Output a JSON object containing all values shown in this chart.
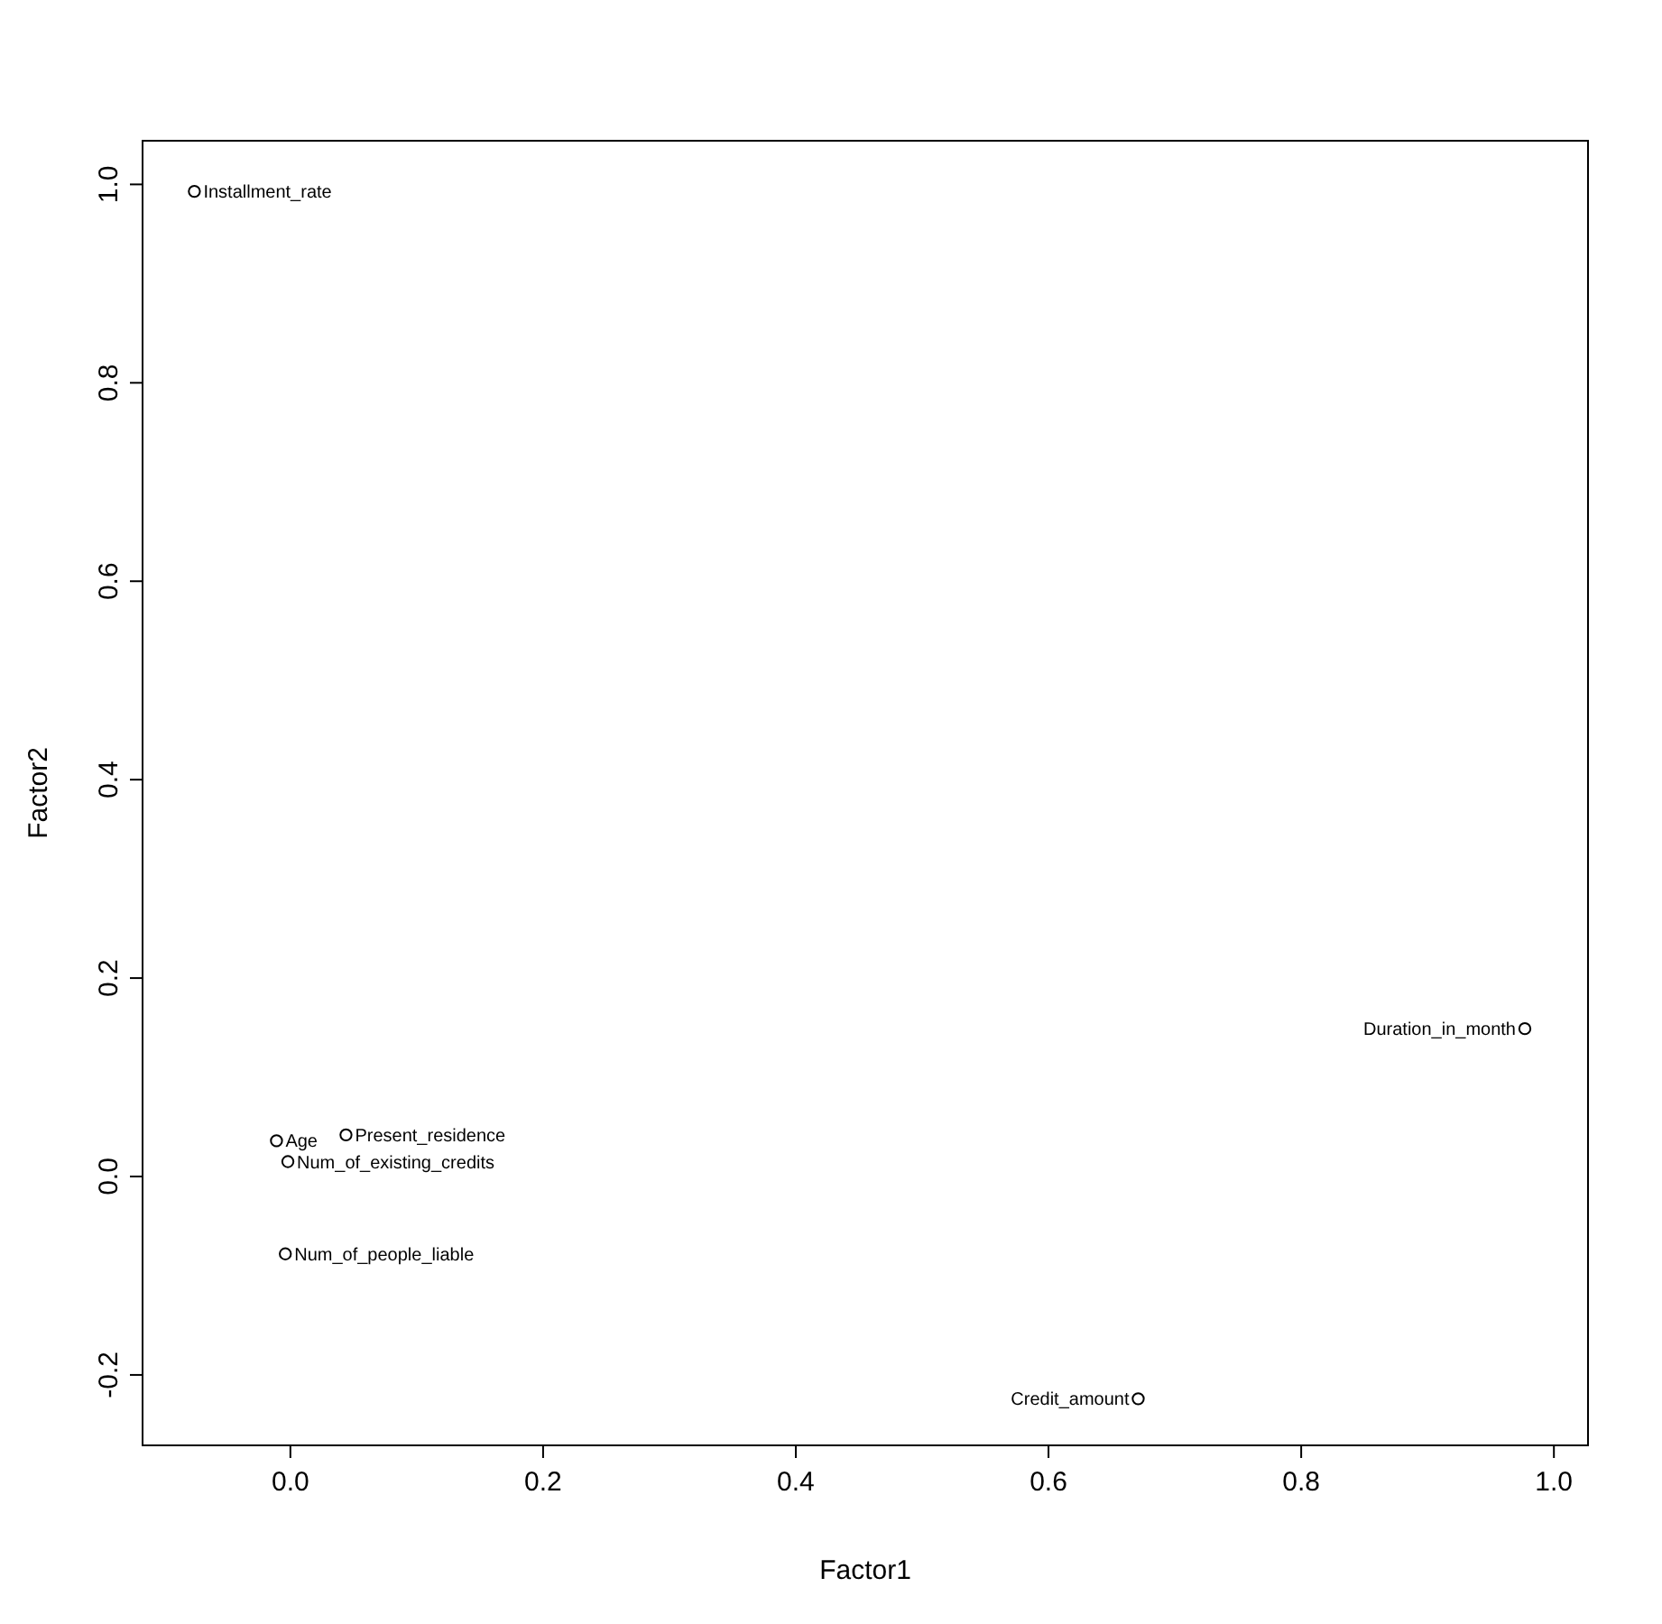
{
  "chart_data": {
    "type": "scatter",
    "xlabel": "Factor1",
    "ylabel": "Factor2",
    "xlim": [
      -0.117,
      1.027
    ],
    "ylim": [
      -0.271,
      1.044
    ],
    "xticks": [
      {
        "value": 0,
        "label": "0.0"
      },
      {
        "value": 0.2,
        "label": "0.2"
      },
      {
        "value": 0.4,
        "label": "0.4"
      },
      {
        "value": 0.6,
        "label": "0.6"
      },
      {
        "value": 0.8,
        "label": "0.8"
      },
      {
        "value": 1,
        "label": "1.0"
      }
    ],
    "yticks": [
      {
        "value": -0.2,
        "label": "-0.2"
      },
      {
        "value": 0,
        "label": "0.0"
      },
      {
        "value": 0.2,
        "label": "0.2"
      },
      {
        "value": 0.4,
        "label": "0.4"
      },
      {
        "value": 0.6,
        "label": "0.6"
      },
      {
        "value": 0.8,
        "label": "0.8"
      },
      {
        "value": 1,
        "label": "1.0"
      }
    ],
    "marker": "circle",
    "grid": false,
    "series": [
      {
        "name": "Installment_rate",
        "color": "#000000",
        "x": [
          -0.076
        ],
        "values": [
          0.993
        ]
      },
      {
        "name": "Duration_in_month",
        "color": "#000000",
        "x": [
          0.977
        ],
        "values": [
          0.149
        ]
      },
      {
        "name": "Credit_amount",
        "color": "#000000",
        "x": [
          0.671
        ],
        "values": [
          -0.224
        ]
      },
      {
        "name": "Present_residence",
        "color": "#000000",
        "x": [
          0.044
        ],
        "values": [
          0.042
        ]
      },
      {
        "name": "Age",
        "color": "#000000",
        "x": [
          -0.011
        ],
        "values": [
          0.036
        ]
      },
      {
        "name": "Num_of_existing_credits",
        "color": "#000000",
        "x": [
          -0.002
        ],
        "values": [
          0.015
        ]
      },
      {
        "name": "Num_of_people_liable",
        "color": "#000000",
        "x": [
          -0.004
        ],
        "values": [
          -0.078
        ]
      }
    ]
  }
}
